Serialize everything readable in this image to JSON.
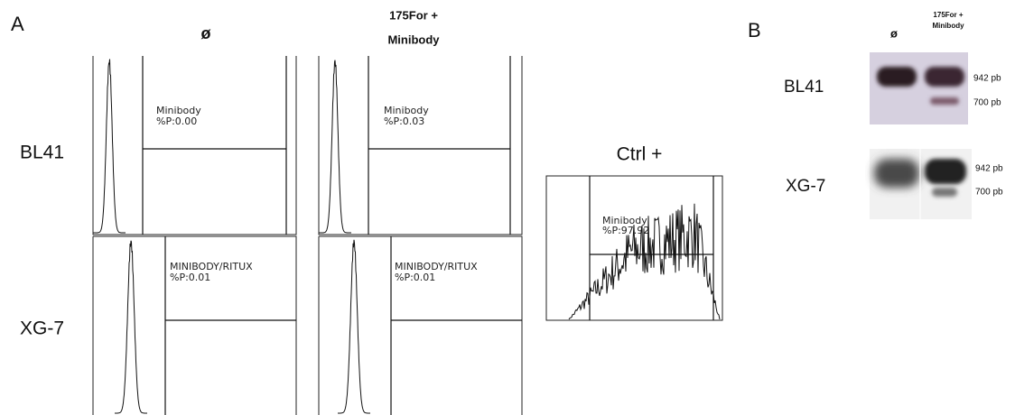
{
  "panel_a": {
    "label": "A",
    "columns": [
      {
        "lines": [
          "ø"
        ]
      },
      {
        "lines": [
          "175For +",
          "Minibody"
        ]
      }
    ],
    "rows": [
      "BL41",
      "XG-7"
    ],
    "plots": [
      {
        "gate": "Minibody",
        "percent": "%P:0.00"
      },
      {
        "gate": "Minibody",
        "percent": "%P:0.03"
      },
      {
        "gate": "MINIBODY/RITUX",
        "percent": "%P:0.01"
      },
      {
        "gate": "MINIBODY/RITUX",
        "percent": "%P:0.01"
      }
    ],
    "control": {
      "title": "Ctrl +",
      "gate": "Minibody",
      "percent": "%P:97.92"
    }
  },
  "panel_b": {
    "label": "B",
    "lanes": [
      {
        "lines": [
          "ø"
        ]
      },
      {
        "lines": [
          "175For +",
          "Minibody"
        ]
      }
    ],
    "gels": [
      {
        "name": "BL41",
        "sizes": [
          "942 pb",
          "700 pb"
        ]
      },
      {
        "name": "XG-7",
        "sizes": [
          "942 pb",
          "700 pb"
        ]
      }
    ]
  }
}
